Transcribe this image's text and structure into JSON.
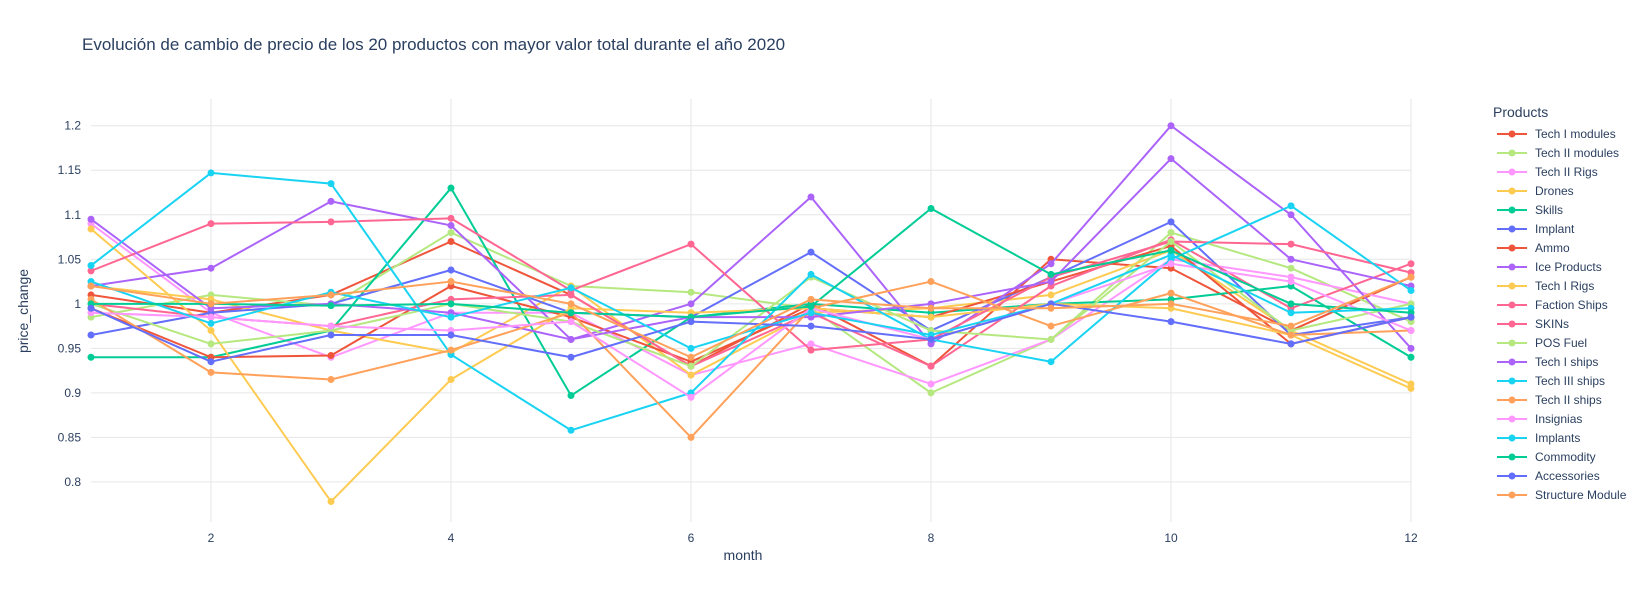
{
  "chart_data": {
    "type": "line",
    "title": "Evolución de cambio de precio de los 20 productos con mayor valor total durante el año 2020",
    "xlabel": "month",
    "ylabel": "price_change",
    "xlim": [
      1,
      12
    ],
    "ylim": [
      0.755,
      1.23
    ],
    "x_ticks": [
      2,
      4,
      6,
      8,
      10,
      12
    ],
    "y_ticks": [
      0.8,
      0.85,
      0.9,
      0.95,
      1,
      1.05,
      1.1,
      1.15,
      1.2
    ],
    "x_tick_labels": [
      "2",
      "4",
      "6",
      "8",
      "10",
      "12"
    ],
    "y_tick_labels": [
      "0.8",
      "0.85",
      "0.9",
      "0.95",
      "1",
      "1.05",
      "1.1",
      "1.15",
      "1.2"
    ],
    "legend_title": "Products",
    "legend_position": "right",
    "grid": true,
    "x": [
      1,
      2,
      3,
      4,
      5,
      6,
      7,
      8,
      9,
      10,
      11,
      12
    ],
    "series": [
      {
        "name": "Tech I modules",
        "color": "#EF553B",
        "values": [
          1.01,
          0.99,
          1.01,
          1.07,
          1.01,
          0.93,
          1.0,
          0.93,
          1.05,
          1.04,
          0.97,
          1.03
        ]
      },
      {
        "name": "Tech II modules",
        "color": "#B6E880",
        "values": [
          0.985,
          1.01,
          0.998,
          1.08,
          1.02,
          1.013,
          0.995,
          0.9,
          0.96,
          1.08,
          1.04,
          0.98
        ]
      },
      {
        "name": "Tech II Rigs",
        "color": "#FF97FF",
        "values": [
          1.09,
          0.99,
          0.94,
          0.99,
          0.99,
          0.92,
          0.955,
          0.91,
          0.96,
          1.05,
          1.03,
          1.0
        ]
      },
      {
        "name": "Drones",
        "color": "#FECB52",
        "values": [
          1.02,
          1.005,
          0.97,
          0.945,
          1.02,
          0.92,
          0.99,
          0.995,
          1.01,
          1.06,
          0.97,
          0.91
        ]
      },
      {
        "name": "Skills",
        "color": "#00CC96",
        "values": [
          0.94,
          0.94,
          0.97,
          1.13,
          0.897,
          0.985,
          1.0,
          0.99,
          1.0,
          1.005,
          1.02,
          0.94
        ]
      },
      {
        "name": "Implant",
        "color": "#636EFA",
        "values": [
          0.965,
          0.99,
          1.0,
          1.038,
          0.99,
          0.985,
          1.058,
          0.97,
          1.03,
          1.092,
          0.965,
          0.985
        ]
      },
      {
        "name": "Ammo",
        "color": "#EF553B",
        "values": [
          0.995,
          0.94,
          0.942,
          1.02,
          0.985,
          0.935,
          0.995,
          0.985,
          1.025,
          1.065,
          0.955,
          0.985
        ]
      },
      {
        "name": "Ice Products",
        "color": "#AB63FA",
        "values": [
          1.02,
          1.04,
          1.115,
          1.088,
          0.96,
          1.0,
          1.12,
          0.955,
          1.045,
          1.2,
          1.1,
          0.95
        ]
      },
      {
        "name": "Tech I Rigs",
        "color": "#FECB52",
        "values": [
          1.084,
          0.97,
          0.778,
          0.915,
          0.995,
          0.99,
          0.995,
          0.985,
          1.0,
          0.995,
          0.965,
          0.905
        ]
      },
      {
        "name": "Faction Ships",
        "color": "#FF6692",
        "values": [
          1.037,
          1.09,
          1.092,
          1.096,
          1.015,
          1.067,
          0.948,
          0.96,
          1.03,
          1.07,
          1.067,
          1.035
        ]
      },
      {
        "name": "SKINs",
        "color": "#FF6692",
        "values": [
          1.0,
          0.985,
          0.975,
          1.005,
          1.01,
          0.93,
          0.99,
          0.93,
          1.02,
          1.072,
          0.995,
          1.045
        ]
      },
      {
        "name": "POS Fuel",
        "color": "#B6E880",
        "values": [
          1.0,
          0.955,
          0.97,
          1.0,
          0.98,
          0.93,
          1.03,
          0.97,
          0.96,
          1.07,
          0.97,
          1.0
        ]
      },
      {
        "name": "Tech I ships",
        "color": "#AB63FA",
        "values": [
          1.095,
          0.995,
          1.0,
          0.99,
          0.96,
          0.985,
          0.985,
          1.0,
          1.025,
          1.163,
          1.05,
          1.02
        ]
      },
      {
        "name": "Tech III ships",
        "color": "#19D3F3",
        "values": [
          1.043,
          1.147,
          1.135,
          0.943,
          0.858,
          0.9,
          1.033,
          0.96,
          0.935,
          1.05,
          1.11,
          1.015
        ]
      },
      {
        "name": "Tech II ships",
        "color": "#FFA15A",
        "values": [
          1.005,
          0.923,
          0.915,
          0.948,
          0.99,
          0.85,
          0.995,
          1.025,
          0.975,
          1.012,
          0.965,
          0.97
        ]
      },
      {
        "name": "Insignias",
        "color": "#FF97FF",
        "values": [
          0.99,
          0.985,
          0.975,
          0.97,
          0.98,
          0.895,
          0.995,
          0.96,
          1.0,
          1.045,
          1.025,
          0.97
        ]
      },
      {
        "name": "Implants",
        "color": "#19D3F3",
        "values": [
          1.025,
          0.978,
          1.013,
          0.985,
          1.018,
          0.95,
          0.99,
          0.965,
          1.0,
          1.055,
          0.99,
          0.995
        ]
      },
      {
        "name": "Commodity",
        "color": "#00CC96",
        "values": [
          1.0,
          1.0,
          0.998,
          1.0,
          0.99,
          0.985,
          0.997,
          1.107,
          1.033,
          1.06,
          1.0,
          0.99
        ]
      },
      {
        "name": "Accessories",
        "color": "#636EFA",
        "values": [
          0.995,
          0.935,
          0.965,
          0.965,
          0.94,
          0.98,
          0.975,
          0.96,
          1.0,
          0.98,
          0.955,
          0.985
        ]
      },
      {
        "name": "Structure Module",
        "color": "#FFA15A",
        "values": [
          1.02,
          1.0,
          1.01,
          1.025,
          1.0,
          0.94,
          1.005,
          0.995,
          0.995,
          1.0,
          0.975,
          1.03
        ]
      }
    ]
  }
}
